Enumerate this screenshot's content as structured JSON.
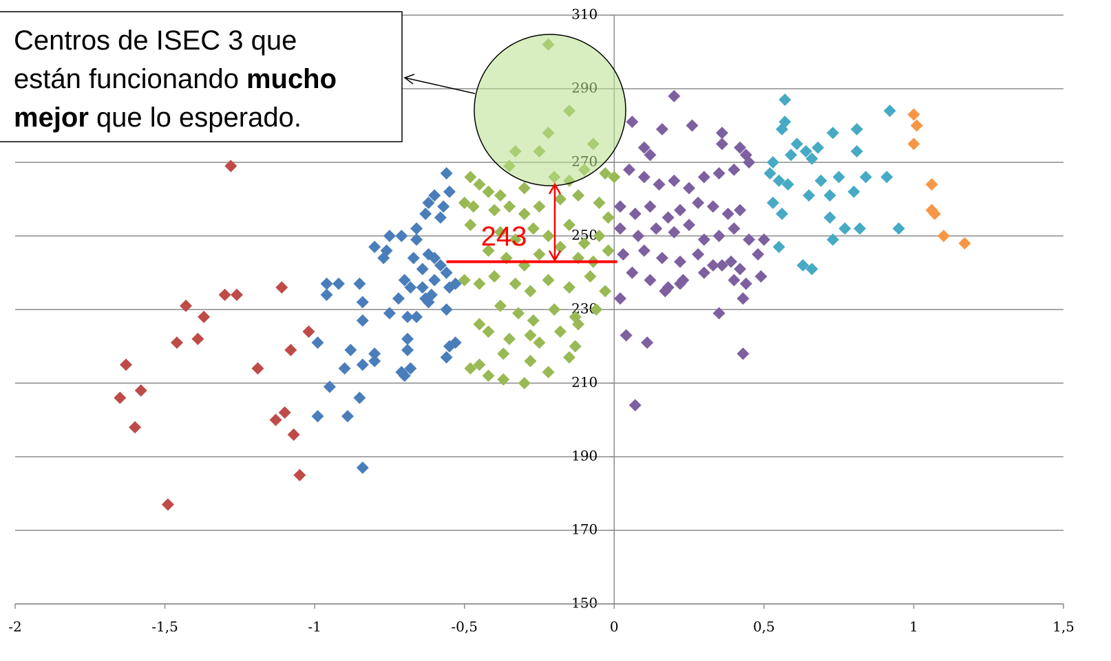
{
  "chart_data": {
    "type": "scatter",
    "xlim": [
      -2,
      1.5
    ],
    "ylim": [
      150,
      310
    ],
    "xticks": [
      {
        "value": -2,
        "label": "-2"
      },
      {
        "value": -1.5,
        "label": "-1,5"
      },
      {
        "value": -1,
        "label": "-1"
      },
      {
        "value": -0.5,
        "label": "-0,5"
      },
      {
        "value": 0,
        "label": "0"
      },
      {
        "value": 0.5,
        "label": "0,5"
      },
      {
        "value": 1,
        "label": "1"
      },
      {
        "value": 1.5,
        "label": "1,5"
      }
    ],
    "yticks": [
      150,
      170,
      190,
      210,
      230,
      250,
      270,
      290,
      310
    ],
    "grid": true,
    "series": [
      {
        "color": "#be4b48",
        "x": [
          -1.28,
          -1.63,
          -1.65,
          -1.58,
          -1.6,
          -1.49,
          -1.43,
          -1.46,
          -1.37,
          -1.39,
          -1.3,
          -1.26,
          -1.19,
          -1.11,
          -1.13,
          -1.1,
          -1.08,
          -1.07,
          -1.05,
          -1.02
        ],
        "values": [
          269,
          215,
          206,
          208,
          198,
          177,
          231,
          221,
          228,
          222,
          234,
          234,
          214,
          236,
          200,
          202,
          219,
          196,
          185,
          224
        ]
      },
      {
        "color": "#4a7ebb",
        "x": [
          -0.99,
          -0.96,
          -0.96,
          -0.92,
          -0.95,
          -0.99,
          -0.9,
          -0.88,
          -0.89,
          -0.85,
          -0.84,
          -0.85,
          -0.84,
          -0.84,
          -0.8,
          -0.8,
          -0.84,
          -0.8,
          -0.77,
          -0.76,
          -0.75,
          -0.75,
          -0.72,
          -0.71,
          -0.7,
          -0.69,
          -0.68,
          -0.69,
          -0.71,
          -0.66,
          -0.66,
          -0.7,
          -0.68,
          -0.67,
          -0.64,
          -0.63,
          -0.62,
          -0.63,
          -0.62,
          -0.6,
          -0.58,
          -0.57,
          -0.55,
          -0.56,
          -0.6,
          -0.58,
          -0.56,
          -0.55,
          -0.53,
          -0.61,
          -0.64,
          -0.56,
          -0.55,
          -0.53,
          -0.56,
          -0.6,
          -0.62,
          -0.66,
          -0.69
        ],
        "values": [
          221,
          234,
          237,
          237,
          209,
          201,
          214,
          219,
          201,
          206,
          187,
          237,
          227,
          215,
          216,
          218,
          232,
          247,
          244,
          246,
          250,
          229,
          233,
          213,
          212,
          222,
          214,
          219,
          250,
          249,
          252,
          238,
          236,
          244,
          241,
          233,
          232,
          256,
          259,
          261,
          255,
          258,
          262,
          267,
          244,
          242,
          240,
          236,
          237,
          234,
          236,
          230,
          220,
          221,
          217,
          238,
          245,
          228,
          228
        ]
      },
      {
        "color": "#98b954",
        "x": [
          -0.22,
          -0.15,
          -0.22,
          -0.07,
          -0.33,
          -0.25,
          -0.35,
          -0.2,
          -0.48,
          -0.45,
          -0.42,
          -0.38,
          -0.3,
          -0.15,
          -0.1,
          -0.03,
          0.0,
          -0.5,
          -0.47,
          -0.4,
          -0.35,
          -0.3,
          -0.25,
          -0.18,
          -0.12,
          -0.05,
          -0.02,
          -0.48,
          -0.38,
          -0.33,
          -0.27,
          -0.22,
          -0.15,
          -0.1,
          -0.05,
          -0.42,
          -0.36,
          -0.3,
          -0.25,
          -0.18,
          -0.12,
          -0.07,
          -0.02,
          -0.5,
          -0.45,
          -0.4,
          -0.33,
          -0.28,
          -0.22,
          -0.15,
          -0.08,
          -0.03,
          -0.38,
          -0.32,
          -0.27,
          -0.2,
          -0.13,
          -0.06,
          -0.45,
          -0.42,
          -0.35,
          -0.28,
          -0.25,
          -0.18,
          -0.12,
          -0.45,
          -0.48,
          -0.42,
          -0.37,
          -0.3,
          -0.28,
          -0.22,
          -0.15,
          -0.13,
          -0.37
        ],
        "values": [
          302,
          284,
          278,
          275,
          273,
          273,
          269,
          266,
          266,
          264,
          262,
          261,
          263,
          265,
          268,
          267,
          266,
          259,
          258,
          257,
          258,
          256,
          258,
          260,
          261,
          259,
          255,
          253,
          251,
          249,
          252,
          250,
          253,
          248,
          250,
          246,
          244,
          242,
          245,
          247,
          244,
          243,
          246,
          238,
          237,
          239,
          237,
          235,
          238,
          236,
          239,
          235,
          231,
          229,
          227,
          230,
          228,
          230,
          226,
          224,
          222,
          223,
          221,
          224,
          226,
          215,
          214,
          212,
          211,
          210,
          216,
          213,
          217,
          220,
          218
        ]
      },
      {
        "color": "#7d60a0",
        "x": [
          0.2,
          0.06,
          0.16,
          0.26,
          0.36,
          0.36,
          0.42,
          0.44,
          0.1,
          0.12,
          0.05,
          0.1,
          0.15,
          0.2,
          0.25,
          0.3,
          0.35,
          0.4,
          0.45,
          0.02,
          0.07,
          0.12,
          0.18,
          0.22,
          0.28,
          0.33,
          0.38,
          0.42,
          0.02,
          0.08,
          0.14,
          0.2,
          0.25,
          0.3,
          0.35,
          0.4,
          0.45,
          0.5,
          0.03,
          0.1,
          0.16,
          0.22,
          0.28,
          0.33,
          0.39,
          0.42,
          0.48,
          0.06,
          0.12,
          0.18,
          0.23,
          0.3,
          0.36,
          0.4,
          0.44,
          0.49,
          0.17,
          0.22,
          0.43,
          0.35,
          0.02,
          0.04,
          0.11,
          0.43,
          0.07
        ],
        "values": [
          288,
          281,
          279,
          280,
          278,
          275,
          274,
          272,
          274,
          272,
          268,
          266,
          264,
          265,
          263,
          266,
          267,
          268,
          270,
          258,
          256,
          258,
          255,
          257,
          259,
          258,
          256,
          257,
          252,
          250,
          252,
          251,
          253,
          249,
          250,
          252,
          249,
          249,
          245,
          246,
          244,
          243,
          245,
          242,
          243,
          241,
          245,
          240,
          238,
          236,
          238,
          240,
          242,
          238,
          237,
          239,
          235,
          237,
          233,
          229,
          233,
          223,
          221,
          218,
          204
        ]
      },
      {
        "color": "#46aac5",
        "x": [
          0.57,
          0.92,
          0.57,
          0.56,
          0.73,
          0.81,
          0.61,
          0.68,
          0.59,
          0.64,
          0.53,
          0.66,
          0.81,
          0.52,
          0.55,
          0.58,
          0.69,
          0.75,
          0.84,
          0.91,
          0.65,
          0.72,
          0.8,
          0.53,
          0.56,
          0.72,
          0.77,
          0.82,
          0.95,
          0.73,
          0.55,
          0.63,
          0.66
        ],
        "values": [
          287,
          284,
          281,
          279,
          278,
          279,
          275,
          274,
          272,
          273,
          270,
          271,
          273,
          267,
          265,
          264,
          265,
          266,
          266,
          266,
          261,
          261,
          262,
          259,
          256,
          255,
          252,
          252,
          252,
          249,
          247,
          242,
          241
        ]
      },
      {
        "color": "#f79646",
        "x": [
          1.0,
          1.01,
          1.0,
          1.06,
          1.06,
          1.07,
          1.1,
          1.17
        ],
        "values": [
          283,
          280,
          275,
          264,
          257,
          256,
          250,
          248
        ]
      }
    ],
    "reference": {
      "value": 243,
      "xlim": [
        -0.56,
        0.01
      ],
      "color": "#ff0000"
    },
    "callout": [
      [
        {
          "text": "Centros de ISEC 3 que",
          "bold": false
        }
      ],
      [
        {
          "text": "están funcionando",
          "bold": false
        },
        {
          "text": "mucho",
          "bold": true
        }
      ],
      [
        {
          "text": "mejor",
          "bold": true
        },
        {
          "text": "que lo esperado.",
          "bold": false
        }
      ]
    ]
  }
}
